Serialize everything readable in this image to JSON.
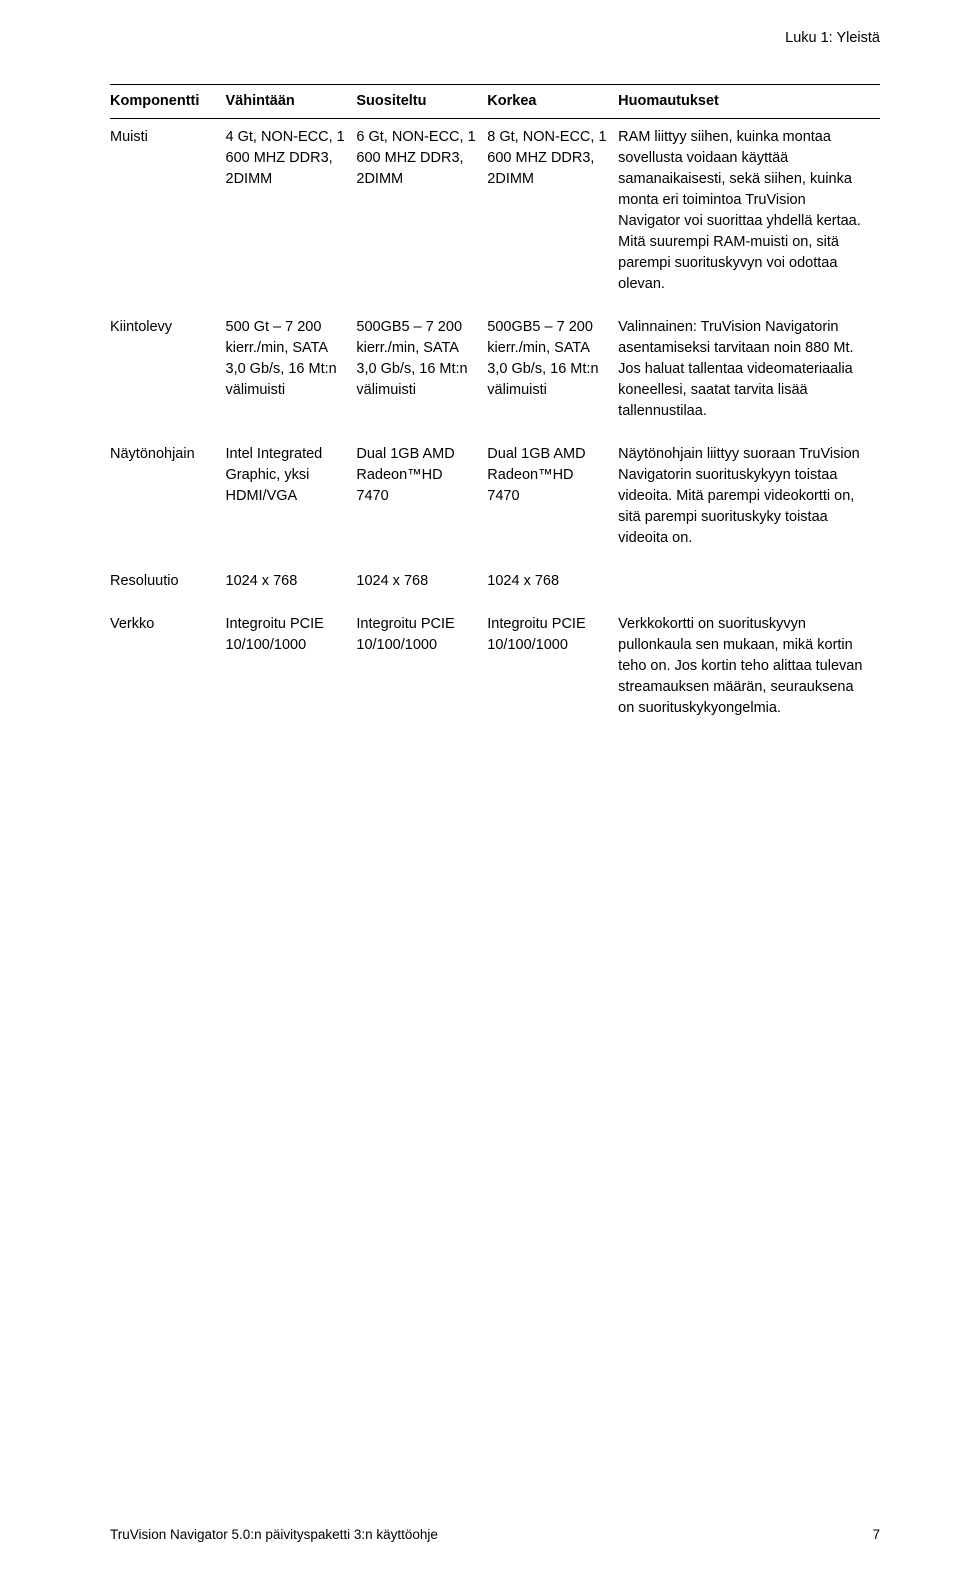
{
  "chapter_label": "Luku 1: Yleistä",
  "table": {
    "headers": [
      "Komponentti",
      "Vähintään",
      "Suositeltu",
      "Korkea",
      "Huomautukset"
    ],
    "rows": [
      {
        "component": "Muisti",
        "min": "4 Gt, NON-ECC,\n1 600 MHZ DDR3, 2DIMM",
        "rec": "6 Gt, NON-ECC,\n1 600 MHZ DDR3, 2DIMM",
        "high": "8 Gt, NON-ECC,\n1 600 MHZ DDR3, 2DIMM",
        "notes": "RAM liittyy siihen, kuinka montaa sovellusta voidaan käyttää samanaikaisesti, sekä siihen, kuinka monta eri toimintoa TruVision Navigator voi suorittaa yhdellä kertaa. Mitä suurempi RAM-muisti on, sitä parempi suorituskyvyn voi odottaa olevan."
      },
      {
        "component": "Kiintolevy",
        "min": "500 Gt –\n7 200 kierr./min, SATA 3,0 Gb/s, 16 Mt:n välimuisti",
        "rec": "500GB5 –\n7 200 kierr./min, SATA 3,0 Gb/s, 16 Mt:n välimuisti",
        "high": "500GB5 –\n7 200 kierr./min, SATA 3,0 Gb/s, 16 Mt:n välimuisti",
        "notes": "Valinnainen: TruVision Navigatorin asentamiseksi tarvitaan noin 880 Mt. Jos haluat tallentaa videomateriaalia koneellesi, saatat tarvita lisää tallennustilaa."
      },
      {
        "component": "Näytönohjain",
        "min": "Intel Integrated Graphic, yksi HDMI/VGA",
        "rec": "Dual 1GB AMD Radeon™HD 7470",
        "high": "Dual 1GB AMD Radeon™HD 7470",
        "notes": "Näytönohjain liittyy suoraan TruVision Navigatorin suorituskykyyn toistaa videoita. Mitä parempi videokortti on, sitä parempi suorituskyky toistaa videoita on."
      },
      {
        "component": "Resoluutio",
        "min": "1024 x 768",
        "rec": "1024 x 768",
        "high": "1024 x 768",
        "notes": ""
      },
      {
        "component": "Verkko",
        "min": "Integroitu PCIE 10/100/1000",
        "rec": "Integroitu PCIE 10/100/1000",
        "high": "Integroitu PCIE 10/100/1000",
        "notes": "Verkkokortti on suorituskyvyn pullonkaula sen mukaan, mikä kortin teho on. Jos kortin teho alittaa tulevan streamauksen määrän, seurauksena on suorituskykyongelmia."
      }
    ]
  },
  "footer_left": "TruVision Navigator 5.0:n päivityspaketti 3:n käyttöohje",
  "footer_page": "7"
}
